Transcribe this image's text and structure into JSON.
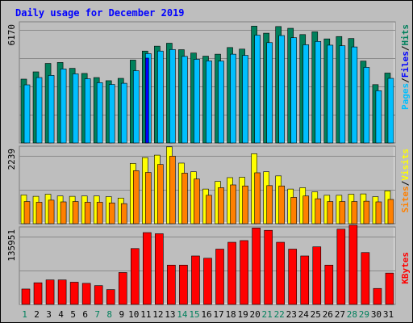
{
  "chart_data": [
    {
      "type": "bar",
      "title": "Daily usage for December 2019",
      "panel": "pages-files-hits",
      "categories": [
        "1",
        "2",
        "3",
        "4",
        "5",
        "6",
        "7",
        "8",
        "9",
        "10",
        "11",
        "12",
        "13",
        "14",
        "15",
        "16",
        "17",
        "18",
        "19",
        "20",
        "21",
        "22",
        "23",
        "24",
        "25",
        "26",
        "27",
        "28",
        "29",
        "30",
        "31"
      ],
      "weekend_days": [
        "1",
        "7",
        "8",
        "14",
        "15",
        "21",
        "22",
        "28",
        "29"
      ],
      "ymax_label": "6170",
      "ylim": [
        0,
        6170
      ],
      "ylabel_parts": [
        "Pages",
        "/",
        "Files",
        "/",
        "Hits"
      ],
      "series": [
        {
          "name": "Hits",
          "values": [
            3250,
            3620,
            4050,
            4100,
            3800,
            3540,
            3330,
            3170,
            3290,
            4220,
            4680,
            4930,
            5080,
            4750,
            4580,
            4420,
            4520,
            4860,
            4780,
            5950,
            5590,
            5930,
            5840,
            5520,
            5660,
            5300,
            5420,
            5320,
            4170,
            2970,
            3560
          ]
        },
        {
          "name": "Files",
          "values": [
            2960,
            3330,
            3440,
            3770,
            3520,
            3270,
            3070,
            2980,
            3040,
            3680,
            4550,
            4680,
            4760,
            4410,
            4260,
            4180,
            4170,
            4520,
            4460,
            5490,
            5110,
            5470,
            5360,
            5000,
            5170,
            4980,
            4950,
            4890,
            3850,
            2660,
            3290
          ]
        },
        {
          "name": "Pages",
          "values": [
            0,
            0,
            0,
            0,
            0,
            0,
            0,
            0,
            0,
            0,
            4320,
            0,
            0,
            0,
            0,
            0,
            0,
            0,
            0,
            0,
            0,
            0,
            0,
            0,
            0,
            0,
            0,
            0,
            0,
            0,
            0
          ]
        }
      ]
    },
    {
      "type": "bar",
      "panel": "sites-visits",
      "categories": [
        "1",
        "2",
        "3",
        "4",
        "5",
        "6",
        "7",
        "8",
        "9",
        "10",
        "11",
        "12",
        "13",
        "14",
        "15",
        "16",
        "17",
        "18",
        "19",
        "20",
        "21",
        "22",
        "23",
        "24",
        "25",
        "26",
        "27",
        "28",
        "29",
        "30",
        "31"
      ],
      "ymax_label": "2239",
      "ylim": [
        0,
        2239
      ],
      "ylabel_parts": [
        "Sites",
        "/",
        "Visits"
      ],
      "series": [
        {
          "name": "Visits",
          "values": [
            830,
            790,
            850,
            800,
            790,
            800,
            800,
            780,
            740,
            1740,
            1910,
            1980,
            2220,
            1750,
            1500,
            1000,
            1220,
            1330,
            1340,
            2020,
            1500,
            1380,
            1000,
            1040,
            920,
            820,
            820,
            850,
            860,
            780,
            950
          ]
        },
        {
          "name": "Sites",
          "values": [
            640,
            620,
            680,
            630,
            640,
            620,
            620,
            600,
            580,
            1530,
            1480,
            1710,
            1950,
            1460,
            1290,
            820,
            1040,
            1120,
            1090,
            1470,
            1100,
            1090,
            760,
            800,
            720,
            640,
            640,
            640,
            650,
            630,
            700
          ]
        }
      ]
    },
    {
      "type": "bar",
      "panel": "kbytes",
      "categories": [
        "1",
        "2",
        "3",
        "4",
        "5",
        "6",
        "7",
        "8",
        "9",
        "10",
        "11",
        "12",
        "13",
        "14",
        "15",
        "16",
        "17",
        "18",
        "19",
        "20",
        "21",
        "22",
        "23",
        "24",
        "25",
        "26",
        "27",
        "28",
        "29",
        "30",
        "31"
      ],
      "ymax_label": "135951",
      "ylim": [
        0,
        135951
      ],
      "ylabel": "KBytes",
      "series": [
        {
          "name": "KBytes",
          "values": [
            27000,
            38000,
            43000,
            43000,
            39000,
            37000,
            33000,
            26000,
            56000,
            98000,
            126000,
            124000,
            69000,
            69000,
            85000,
            81000,
            97000,
            109000,
            112000,
            134000,
            130000,
            109000,
            97000,
            85000,
            101000,
            69000,
            132000,
            139000,
            91000,
            28000,
            55000
          ]
        }
      ]
    }
  ],
  "colors": {
    "background": "#bebebe",
    "frame": "#ffffff",
    "title": "#0000ff",
    "hits": "#00805c",
    "files": "#0000ff",
    "files_fill": "#00bfff",
    "pages": "#00bfff",
    "visits": "#ffff00",
    "sites": "#ff8000",
    "kbytes": "#ff0000",
    "weekday": "#000000",
    "weekend": "#00805c"
  }
}
